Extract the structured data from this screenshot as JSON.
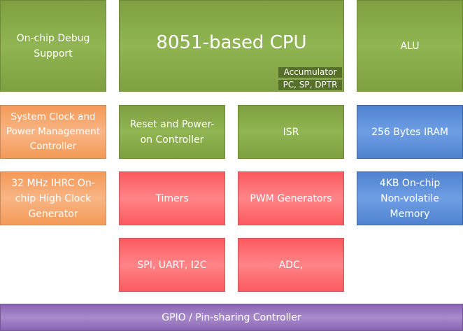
{
  "blocks": {
    "debug": "On-chip Debug Support",
    "cpu": "8051-based CPU",
    "accumulator": "Accumulator",
    "registers": "PC, SP, DPTR",
    "alu": "ALU",
    "sysclock": "System Clock and Power Management Controller",
    "reset": "Reset and Power-on Controller",
    "isr": "ISR",
    "iram": "256 Bytes IRAM",
    "ihrc": "32 MHz IHRC On-chip High Clock Generator",
    "timers": "Timers",
    "pwm": "PWM Generators",
    "nvm": "4KB On-chip Non-volatile Memory",
    "serial": "SPI, UART, I2C",
    "adc": "ADC,",
    "gpio": "GPIO / Pin-sharing Controller"
  },
  "colors": {
    "core": "#8db04c",
    "clock": "#f6a66b",
    "peripheral": "#ff6e72",
    "memory": "#5b8fd8",
    "io": "#9b79c0"
  }
}
